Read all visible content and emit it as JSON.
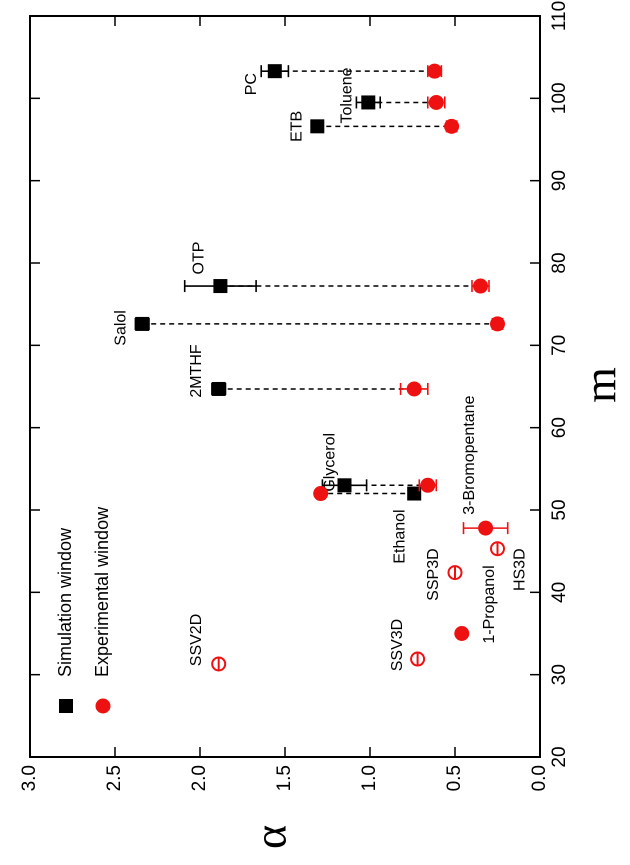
{
  "chart_data": {
    "type": "scatter",
    "xlabel": "m",
    "ylabel": "α",
    "xlim": [
      20,
      110
    ],
    "xticks": [
      20,
      30,
      40,
      50,
      60,
      70,
      80,
      90,
      100,
      110
    ],
    "ylim": [
      0,
      3
    ],
    "yticks": [
      {
        "value": 0,
        "label": "0.0"
      },
      {
        "value": 0.5,
        "label": "0.5"
      },
      {
        "value": 1,
        "label": "1.0"
      },
      {
        "value": 1.5,
        "label": "1.5"
      },
      {
        "value": 2,
        "label": "2.0"
      },
      {
        "value": 2.5,
        "label": "2.5"
      },
      {
        "value": 3,
        "label": "3.0"
      }
    ],
    "legend": "upper left",
    "series": [
      {
        "name": "Simulation window",
        "color": "#000000",
        "marker": "square",
        "labels": [
          "PC",
          "Toluene",
          "ETB",
          "OTP",
          "Salol",
          "2MTHF",
          "Glycerol",
          "Ethanol"
        ],
        "x": [
          103.3,
          99.5,
          96.6,
          77.2,
          72.6,
          64.7,
          53,
          52
        ],
        "values": [
          1.56,
          1.01,
          1.31,
          1.88,
          2.34,
          1.89,
          1.15,
          0.74
        ],
        "errors": [
          0.08,
          0.07,
          0.03,
          0.21,
          0.04,
          0.04,
          0.13,
          0.03
        ]
      },
      {
        "name": "Experimental window",
        "color": "#ee1111",
        "marker": "circle",
        "labels": [
          null,
          null,
          null,
          null,
          null,
          null,
          null,
          null,
          "3-Bromopentane",
          "1-Propanol"
        ],
        "x": [
          103.3,
          99.5,
          96.6,
          77.2,
          72.6,
          64.7,
          53,
          52,
          47.8,
          35
        ],
        "values": [
          0.62,
          0.61,
          0.52,
          0.35,
          0.25,
          0.74,
          0.66,
          1.29,
          0.32,
          0.46
        ],
        "errors": [
          0.04,
          0.05,
          0.03,
          0.05,
          0.03,
          0.08,
          0.05,
          0.02,
          0.13,
          0.02
        ]
      }
    ],
    "open_points": {
      "color": "#ee1111",
      "labels": [
        "SSV2D",
        "SSV3D",
        "SSP3D",
        "HS3D"
      ],
      "x": [
        31.3,
        31.9,
        42.4,
        45.3
      ],
      "values": [
        1.89,
        0.72,
        0.5,
        0.25
      ]
    }
  }
}
